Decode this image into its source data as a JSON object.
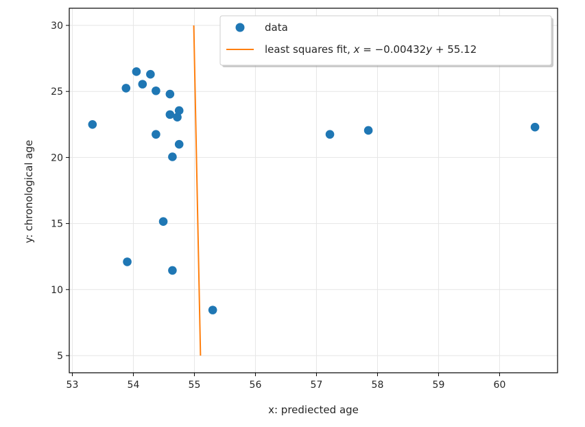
{
  "chart_data": {
    "type": "scatter",
    "xlabel": "x: prediected age",
    "ylabel": "y: chronological age",
    "xlim": [
      52.95,
      60.95
    ],
    "ylim": [
      3.7,
      31.3
    ],
    "xticks": [
      53,
      54,
      55,
      56,
      57,
      58,
      59,
      60
    ],
    "yticks": [
      5,
      10,
      15,
      20,
      25,
      30
    ],
    "grid": true,
    "legend_position": "top-right",
    "colors": {
      "data": "#1f77b4",
      "fit": "#ff7f0e",
      "grid": "#e6e6e6",
      "axis": "#000000"
    },
    "series": [
      {
        "name": "data",
        "kind": "points",
        "points": [
          [
            53.33,
            22.5
          ],
          [
            53.88,
            25.25
          ],
          [
            53.9,
            12.1
          ],
          [
            54.05,
            26.5
          ],
          [
            54.15,
            25.55
          ],
          [
            54.28,
            26.3
          ],
          [
            54.37,
            25.05
          ],
          [
            54.37,
            21.75
          ],
          [
            54.49,
            15.15
          ],
          [
            54.6,
            24.8
          ],
          [
            54.6,
            23.25
          ],
          [
            54.64,
            20.05
          ],
          [
            54.64,
            11.45
          ],
          [
            54.72,
            23.05
          ],
          [
            54.75,
            23.55
          ],
          [
            54.75,
            21.0
          ],
          [
            55.3,
            8.45
          ],
          [
            57.22,
            21.75
          ],
          [
            57.85,
            22.05
          ],
          [
            60.58,
            22.3
          ]
        ]
      },
      {
        "name": "least squares fit, x = −0.00432y + 55.12",
        "kind": "line",
        "points": [
          [
            54.99,
            30.0
          ],
          [
            55.1,
            5.0
          ]
        ]
      }
    ],
    "legend": {
      "data_label": "data",
      "fit_label_prefix": "least squares fit, ",
      "fit_eq_lhs": "x",
      "fit_eq_rhs_pre": " = −0.00432",
      "fit_eq_var": "y",
      "fit_eq_rhs_post": " + 55.12"
    }
  }
}
